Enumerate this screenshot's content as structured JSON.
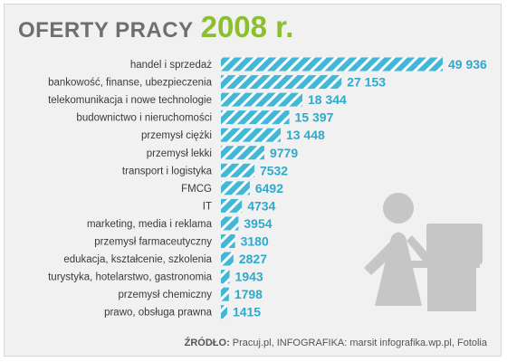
{
  "title": {
    "main": "OFERTY PRACY",
    "year": "2008 r."
  },
  "colors": {
    "bar": "#42b8d6",
    "bar_stripe": "#ffffff",
    "value_text": "#2fa9cc",
    "year_accent": "#8cbf2f",
    "pictogram": "#c6c6c6"
  },
  "icons": [
    "office-worker-at-desk-pictogram"
  ],
  "source": {
    "label": "ŹRÓDŁO:",
    "text": "Pracuj.pl, INFOGRAFIKA: marsit infografika.wp.pl, Fotolia"
  },
  "chart_data": {
    "type": "bar",
    "orientation": "horizontal",
    "categories": [
      "handel i sprzedaż",
      "bankowość, finanse, ubezpieczenia",
      "telekomunikacja i nowe technologie",
      "budownictwo i nieruchomości",
      "przemysł ciężki",
      "przemysł lekki",
      "transport i logistyka",
      "FMCG",
      "IT",
      "marketing, media i reklama",
      "przemysł farmaceutyczny",
      "edukacja, kształcenie, szkolenia",
      "turystyka, hotelarstwo, gastronomia",
      "przemysł chemiczny",
      "prawo, obsługa prawna"
    ],
    "values": [
      49936,
      27153,
      18344,
      15397,
      13448,
      9779,
      7532,
      6492,
      4734,
      3954,
      3180,
      2827,
      1943,
      1798,
      1415
    ],
    "value_labels": [
      "49 936",
      "27 153",
      "18 344",
      "15 397",
      "13 448",
      "9779",
      "7532",
      "6492",
      "4734",
      "3954",
      "3180",
      "2827",
      "1943",
      "1798",
      "1415"
    ],
    "xlim": [
      0,
      49936
    ],
    "grid": false,
    "legend": "none"
  }
}
